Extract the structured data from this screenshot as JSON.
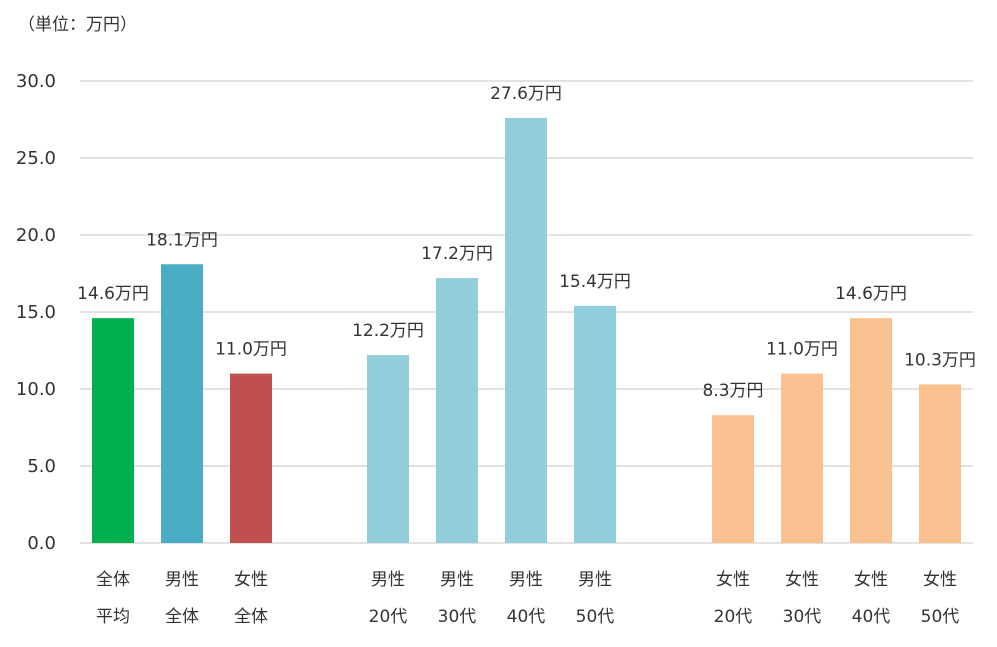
{
  "chart_data": {
    "type": "bar",
    "unit_label": "（単位：万円）",
    "ylim": [
      0,
      30
    ],
    "yticks": [
      "0.0",
      "5.0",
      "10.0",
      "15.0",
      "20.0",
      "25.0",
      "30.0"
    ],
    "grid": true,
    "legend": "none",
    "bars": [
      {
        "line1": "全体",
        "line2": "平均",
        "value": 14.6,
        "label": "14.6万円",
        "color": "#00b050"
      },
      {
        "line1": "男性",
        "line2": "全体",
        "value": 18.1,
        "label": "18.1万円",
        "color": "#4bacc6"
      },
      {
        "line1": "女性",
        "line2": "全体",
        "value": 11.0,
        "label": "11.0万円",
        "color": "#c0504d"
      },
      {
        "line1": "男性",
        "line2": "20代",
        "value": 12.2,
        "label": "12.2万円",
        "color": "#92cddc"
      },
      {
        "line1": "男性",
        "line2": "30代",
        "value": 17.2,
        "label": "17.2万円",
        "color": "#92cddc"
      },
      {
        "line1": "男性",
        "line2": "40代",
        "value": 27.6,
        "label": "27.6万円",
        "color": "#92cddc"
      },
      {
        "line1": "男性",
        "line2": "50代",
        "value": 15.4,
        "label": "15.4万円",
        "color": "#92cddc"
      },
      {
        "line1": "女性",
        "line2": "20代",
        "value": 8.3,
        "label": "8.3万円",
        "color": "#fac090"
      },
      {
        "line1": "女性",
        "line2": "30代",
        "value": 11.0,
        "label": "11.0万円",
        "color": "#fac090"
      },
      {
        "line1": "女性",
        "line2": "40代",
        "value": 14.6,
        "label": "14.6万円",
        "color": "#fac090"
      },
      {
        "line1": "女性",
        "line2": "50代",
        "value": 10.3,
        "label": "10.3万円",
        "color": "#fac090"
      }
    ]
  }
}
